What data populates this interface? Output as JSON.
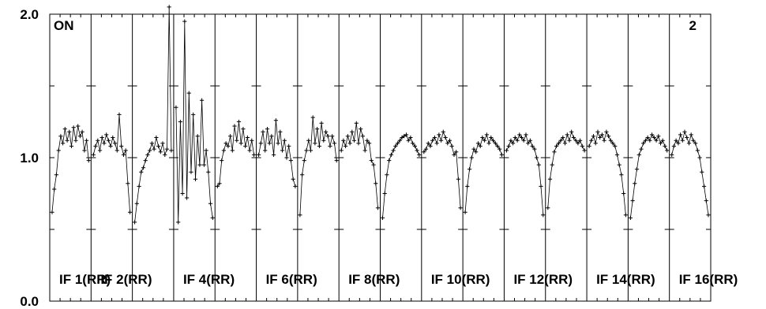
{
  "chart_data": {
    "type": "line",
    "title": "",
    "xlabel": "",
    "ylabel": "",
    "ylim": [
      0.0,
      2.0
    ],
    "y_ticks": [
      "0.0",
      "1.0",
      "2.0"
    ],
    "corner_left": "ON",
    "corner_right": "2",
    "grid": false,
    "marker": "plus",
    "panels": [
      {
        "label": "IF 1(RR)",
        "values": [
          0.62,
          0.78,
          0.88,
          1.05,
          1.15,
          1.1,
          1.2,
          1.12,
          1.18,
          1.08,
          1.21,
          1.12,
          1.22,
          1.15,
          1.18,
          1.05,
          1.12,
          0.98
        ]
      },
      {
        "label": "IF 2(RR)",
        "values": [
          1.02,
          1.08,
          1.12,
          1.05,
          1.14,
          1.1,
          1.16,
          1.12,
          1.08,
          1.14,
          1.1,
          1.05,
          1.3,
          1.08,
          1.02,
          1.05,
          0.82,
          0.62
        ]
      },
      {
        "label": "",
        "values": [
          0.55,
          0.68,
          0.8,
          0.9,
          0.93,
          0.98,
          1.02,
          1.05,
          1.1,
          1.06,
          1.14,
          1.08,
          1.04,
          1.1,
          1.02,
          1.06,
          2.05,
          1.05
        ]
      },
      {
        "label": "IF 4(RR)",
        "values": [
          1.35,
          0.55,
          1.25,
          0.75,
          1.95,
          0.72,
          1.45,
          0.9,
          1.3,
          0.85,
          1.15,
          0.95,
          1.4,
          0.95,
          1.05,
          0.9,
          0.68,
          0.58
        ]
      },
      {
        "label": "",
        "values": [
          0.8,
          0.82,
          0.98,
          1.05,
          1.1,
          1.08,
          1.15,
          1.05,
          1.22,
          1.12,
          1.25,
          1.1,
          1.2,
          1.08,
          1.14,
          1.05,
          1.12,
          1.02
        ]
      },
      {
        "label": "IF 6(RR)",
        "values": [
          1.02,
          1.1,
          1.18,
          1.05,
          1.2,
          1.1,
          1.15,
          1.02,
          1.26,
          1.1,
          1.18,
          1.05,
          1.12,
          1.0,
          1.08,
          0.98,
          0.85,
          0.8
        ]
      },
      {
        "label": "",
        "values": [
          0.6,
          0.88,
          0.98,
          1.05,
          1.12,
          1.05,
          1.28,
          1.1,
          1.2,
          1.08,
          1.24,
          1.12,
          1.18,
          1.15,
          1.08,
          1.15,
          1.1,
          0.98
        ]
      },
      {
        "label": "IF 8(RR)",
        "values": [
          1.05,
          1.12,
          1.08,
          1.15,
          1.1,
          1.18,
          1.12,
          1.24,
          1.1,
          1.2,
          1.15,
          1.05,
          1.12,
          1.1,
          0.98,
          0.95,
          0.82,
          0.65
        ]
      },
      {
        "label": "",
        "values": [
          0.58,
          0.75,
          0.88,
          0.98,
          1.02,
          1.05,
          1.08,
          1.1,
          1.12,
          1.14,
          1.15,
          1.16,
          1.12,
          1.14,
          1.1,
          1.08,
          1.05,
          1.02
        ]
      },
      {
        "label": "IF 10(RR)",
        "values": [
          1.04,
          1.06,
          1.1,
          1.08,
          1.12,
          1.14,
          1.1,
          1.16,
          1.12,
          1.18,
          1.14,
          1.1,
          1.12,
          1.08,
          1.02,
          1.04,
          0.85,
          0.65
        ]
      },
      {
        "label": "",
        "values": [
          0.62,
          0.8,
          0.92,
          1.0,
          1.06,
          1.04,
          1.1,
          1.08,
          1.14,
          1.12,
          1.16,
          1.1,
          1.14,
          1.12,
          1.1,
          1.08,
          1.06,
          1.02
        ]
      },
      {
        "label": "IF 12(RR)",
        "values": [
          1.05,
          1.08,
          1.12,
          1.1,
          1.14,
          1.12,
          1.16,
          1.14,
          1.12,
          1.16,
          1.1,
          1.12,
          1.08,
          1.06,
          1.0,
          0.95,
          0.8,
          0.6
        ]
      },
      {
        "label": "",
        "values": [
          0.65,
          0.85,
          0.95,
          1.04,
          1.08,
          1.1,
          1.12,
          1.14,
          1.1,
          1.16,
          1.12,
          1.18,
          1.14,
          1.12,
          1.1,
          1.12,
          1.08,
          1.05
        ]
      },
      {
        "label": "IF 14(RR)",
        "values": [
          1.08,
          1.12,
          1.15,
          1.1,
          1.18,
          1.14,
          1.16,
          1.12,
          1.18,
          1.15,
          1.12,
          1.1,
          1.08,
          1.02,
          0.95,
          0.88,
          0.75,
          0.6
        ]
      },
      {
        "label": "",
        "values": [
          0.58,
          0.7,
          0.82,
          0.92,
          1.02,
          1.06,
          1.1,
          1.12,
          1.14,
          1.12,
          1.16,
          1.14,
          1.12,
          1.15,
          1.1,
          1.12,
          1.08,
          1.05
        ]
      },
      {
        "label": "IF 16(RR)",
        "values": [
          1.02,
          1.08,
          1.12,
          1.1,
          1.16,
          1.12,
          1.18,
          1.14,
          1.1,
          1.16,
          1.12,
          1.1,
          1.05,
          1.0,
          0.9,
          0.8,
          0.7,
          0.6
        ]
      }
    ]
  }
}
